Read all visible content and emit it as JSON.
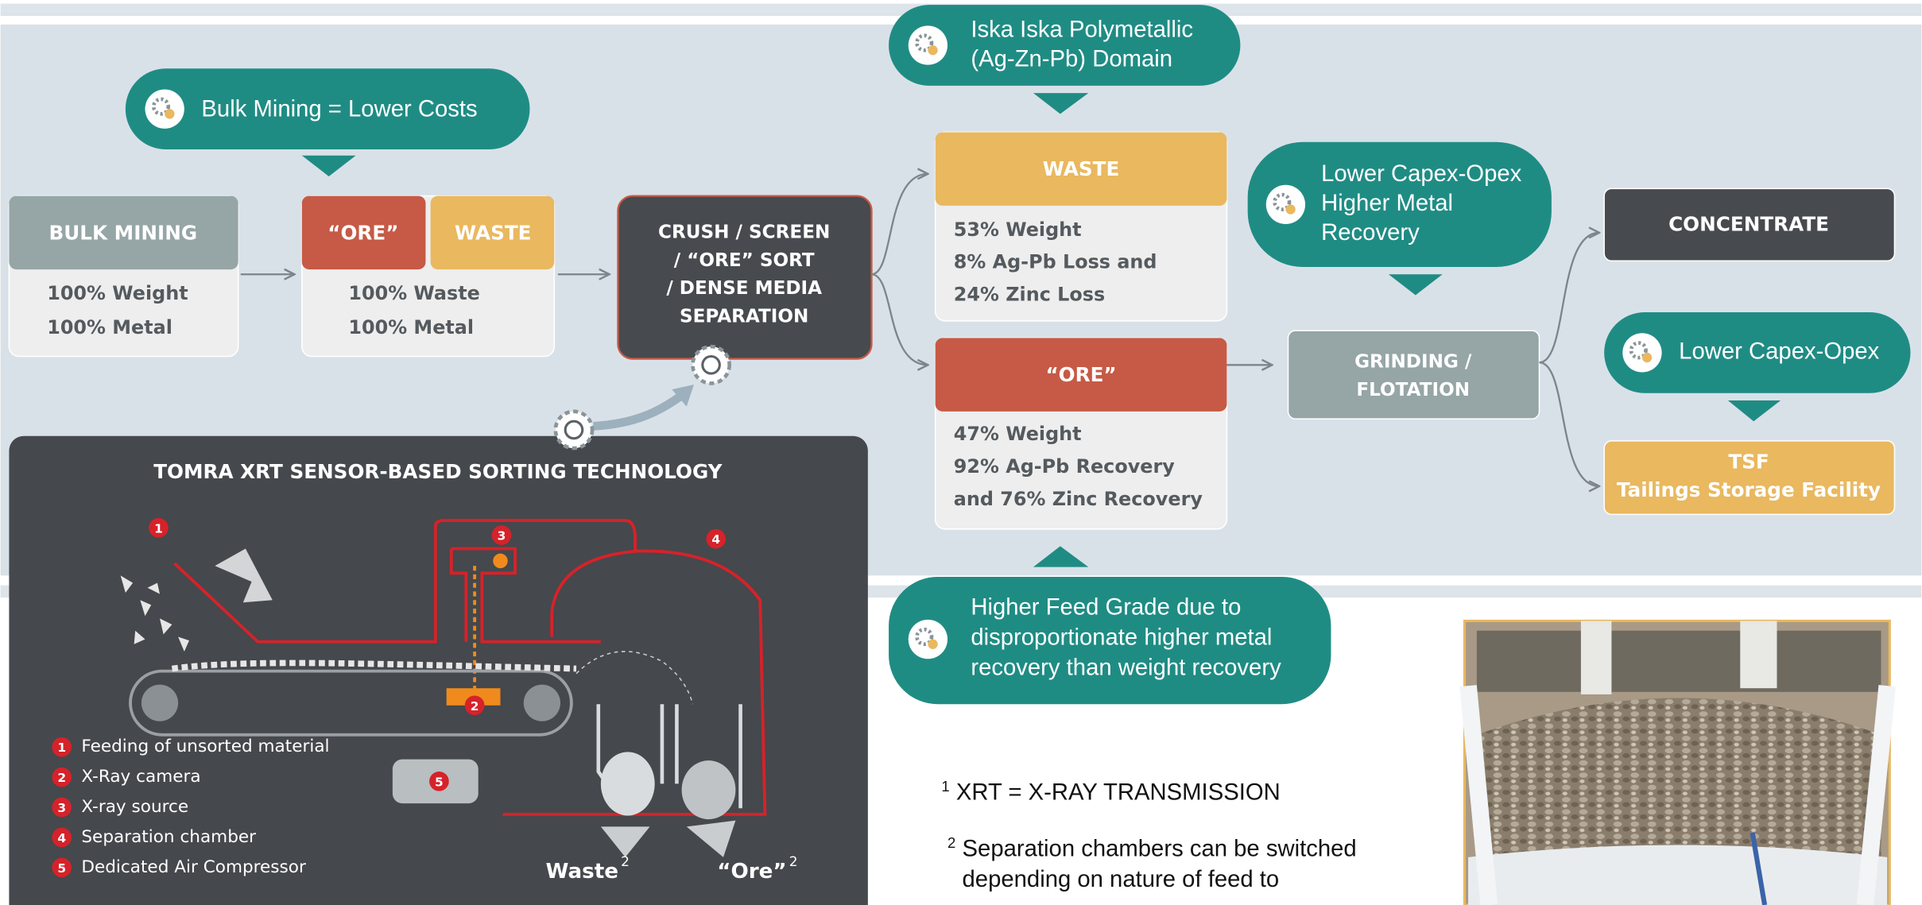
{
  "callouts": {
    "bulk": [
      "Bulk Mining = Lower Costs"
    ],
    "iska": [
      "Iska Iska Polymetallic",
      "(Ag-Zn-Pb) Domain"
    ],
    "capex_recovery": [
      "Lower Capex-Opex",
      "Higher Metal",
      "Recovery"
    ],
    "capex": [
      "Lower Capex-Opex"
    ],
    "feed_grade": [
      "Higher Feed Grade due to",
      "disproportionate higher metal",
      "recovery than weight recovery"
    ]
  },
  "nodes": {
    "bulk_mining": {
      "title": "BULK MINING",
      "lines": [
        "100% Weight",
        "100% Metal"
      ]
    },
    "feed": {
      "ore": "“ORE”",
      "waste": "WASTE",
      "lines": [
        "100% Waste",
        "100% Metal"
      ]
    },
    "crush": {
      "lines": [
        "CRUSH / SCREEN",
        "/ “ORE” SORT",
        "/ DENSE MEDIA",
        "SEPARATION"
      ]
    },
    "waste_out": {
      "title": "WASTE",
      "lines": [
        "53% Weight",
        "8% Ag-Pb Loss and",
        "24% Zinc Loss"
      ]
    },
    "ore_out": {
      "title": "“ORE”",
      "lines": [
        "47% Weight",
        "92% Ag-Pb Recovery",
        "and 76% Zinc Recovery"
      ]
    },
    "grinding": {
      "lines": [
        "GRINDING /",
        "FLOTATION"
      ]
    },
    "concentrate": {
      "lines": [
        "CONCENTRATE"
      ]
    },
    "tsf": {
      "lines": [
        "TSF",
        "Tailings Storage Facility"
      ]
    }
  },
  "tomra": {
    "title": "TOMRA XRT SENSOR-BASED SORTING TECHNOLOGY",
    "legend": [
      {
        "number": "1",
        "label": "Feeding of unsorted material"
      },
      {
        "number": "2",
        "label": "X-Ray camera"
      },
      {
        "number": "3",
        "label": "X-ray source"
      },
      {
        "number": "4",
        "label": "Separation chamber"
      },
      {
        "number": "5",
        "label": "Dedicated Air Compressor"
      }
    ],
    "outputs": [
      {
        "label": "Waste",
        "note": "2"
      },
      {
        "label": "“Ore”",
        "note": "2"
      }
    ]
  },
  "footnotes": [
    {
      "mark": "1",
      "lines": [
        "XRT = X-RAY TRANSMISSION"
      ]
    },
    {
      "mark": "2",
      "lines": [
        "Separation chambers can be switched",
        "depending on nature of feed to"
      ]
    }
  ]
}
